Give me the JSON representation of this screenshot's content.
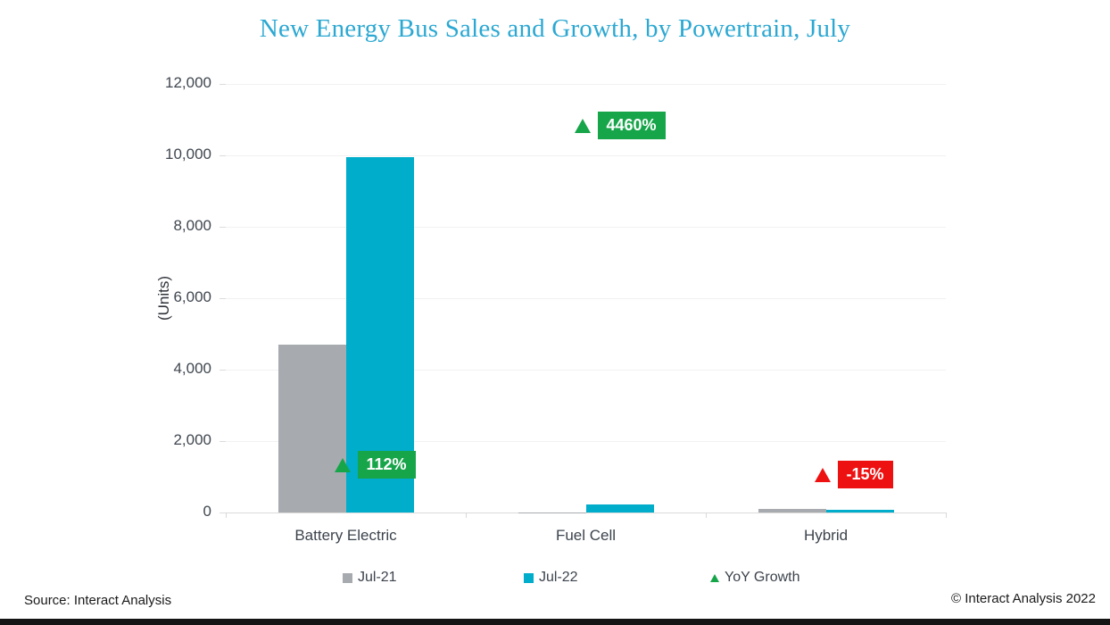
{
  "page": {
    "title": "New Energy Bus Sales and Growth, by Powertrain, July"
  },
  "chart_data": {
    "type": "bar",
    "title": "New Energy Bus Sales and Growth, by Powertrain, July",
    "ylabel": "(Units)",
    "ylim": [
      0,
      12000
    ],
    "ytick_step": 2000,
    "ytick_labels": [
      "12,000",
      "10,000",
      "8,000",
      "6,000",
      "4,000",
      "2,000",
      "0"
    ],
    "categories": [
      "Battery Electric",
      "Fuel Cell",
      "Hybrid"
    ],
    "series": [
      {
        "name": "Jul-21",
        "color": "#A7ABAF",
        "values": [
          4700,
          5,
          90
        ]
      },
      {
        "name": "Jul-22",
        "color": "#00ADCA",
        "values": [
          9950,
          225,
          77
        ]
      }
    ],
    "growth": {
      "name": "YoY Growth",
      "axis_range": [
        -500,
        5000
      ],
      "values": [
        112,
        4460,
        -15
      ],
      "labels": [
        "112%",
        "4460%",
        "-15%"
      ],
      "positive_color": "#17A54A",
      "negative_color": "#EE1111"
    },
    "legend": [
      {
        "label": "Jul-21",
        "swatch": "square",
        "color": "#A7ABAF"
      },
      {
        "label": "Jul-22",
        "swatch": "square",
        "color": "#00ADCA"
      },
      {
        "label": "YoY Growth",
        "swatch": "triangle",
        "color": "#17A54A"
      }
    ],
    "grid": true,
    "legend_position": "bottom"
  },
  "footer": {
    "source": "Source: Interact Analysis",
    "copyright": "© Interact Analysis 2022"
  },
  "colors": {
    "title": "#2CA8D2",
    "axis_text": "#404750",
    "gridline": "#F1F1F1",
    "zero_line": "#DADADA"
  }
}
